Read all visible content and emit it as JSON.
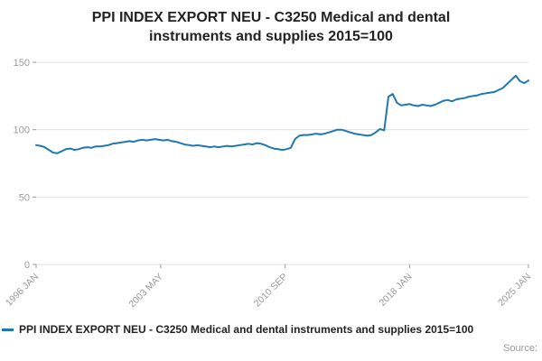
{
  "title": "PPI INDEX EXPORT NEU - C3250 Medical and dental instruments and supplies 2015=100",
  "legend": {
    "label": "PPI INDEX EXPORT NEU - C3250 Medical and dental instruments and supplies 2015=100"
  },
  "source_label": "Source:",
  "colors": {
    "line": "#1f77b4",
    "grid": "#e0e0e0",
    "axis_text": "#999999",
    "title_text": "#222222"
  },
  "chart_data": {
    "type": "line",
    "title": "PPI INDEX EXPORT NEU - C3250 Medical and dental instruments and supplies 2015=100",
    "xlabel": "",
    "ylabel": "",
    "ylim": [
      0,
      150
    ],
    "y_ticks": [
      0,
      50,
      100,
      150
    ],
    "x_range": [
      1996.0,
      2025.0
    ],
    "x_ticks": [
      {
        "t": 1996.0,
        "label": "1996 JAN"
      },
      {
        "t": 2003.3333,
        "label": "2003 MAY"
      },
      {
        "t": 2010.6667,
        "label": "2010 SEP"
      },
      {
        "t": 2018.0,
        "label": "2018 JAN"
      },
      {
        "t": 2025.0,
        "label": "2025 JAN"
      }
    ],
    "grid": "horizontal",
    "legend_position": "bottom-left",
    "series": [
      {
        "name": "PPI INDEX EXPORT NEU - C3250 Medical and dental instruments and supplies 2015=100",
        "x_start": 1996.0,
        "x_step": 0.25,
        "x_unit": "decimal year (quarterly estimates read from monthly line)",
        "values": [
          88.5,
          88.0,
          87.0,
          85.0,
          83.0,
          82.5,
          84.0,
          85.5,
          86.0,
          85.0,
          85.5,
          86.5,
          87.0,
          86.5,
          87.5,
          87.5,
          88.0,
          88.5,
          89.5,
          90.0,
          90.5,
          91.0,
          91.5,
          91.0,
          92.0,
          92.5,
          92.0,
          92.5,
          93.0,
          92.5,
          92.0,
          92.5,
          91.5,
          91.0,
          90.0,
          89.0,
          88.5,
          88.0,
          88.5,
          88.0,
          87.5,
          87.0,
          87.5,
          87.0,
          87.5,
          88.0,
          87.5,
          88.0,
          88.5,
          89.0,
          89.5,
          89.0,
          90.0,
          89.5,
          88.5,
          87.0,
          86.0,
          85.5,
          85.0,
          85.5,
          86.5,
          93.0,
          95.5,
          96.0,
          96.0,
          96.5,
          97.0,
          96.5,
          97.0,
          98.0,
          99.0,
          100.0,
          100.0,
          99.0,
          98.0,
          97.0,
          96.5,
          96.0,
          95.5,
          96.0,
          98.0,
          100.5,
          99.5,
          124.5,
          126.5,
          120.0,
          118.0,
          118.5,
          119.0,
          118.0,
          117.5,
          118.5,
          118.0,
          117.5,
          118.5,
          120.0,
          121.5,
          122.0,
          121.0,
          122.5,
          123.0,
          123.5,
          124.5,
          125.0,
          125.5,
          126.5,
          127.0,
          127.5,
          128.0,
          129.5,
          131.0,
          134.0,
          137.0,
          140.0,
          136.0,
          134.5,
          136.5
        ]
      }
    ]
  }
}
